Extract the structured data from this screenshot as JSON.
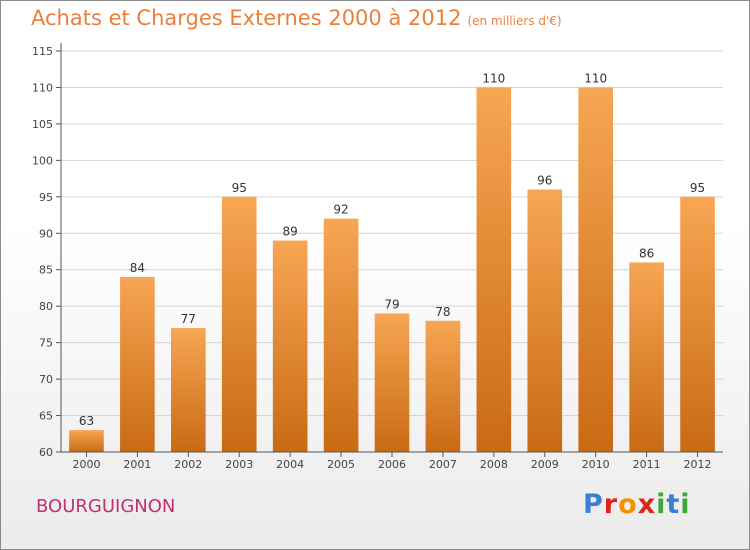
{
  "title": "Achats et Charges Externes 2000 à 2012",
  "subtitle": "(en milliers d'€)",
  "place": "BOURGUIGNON",
  "logo": {
    "text": "Proxiti",
    "letters": [
      {
        "char": "P",
        "color": "#3a7fd1"
      },
      {
        "char": "r",
        "color": "#e2231a"
      },
      {
        "char": "o",
        "color": "#f39200"
      },
      {
        "char": "x",
        "color": "#e2231a"
      },
      {
        "char": "i",
        "color": "#3aa935"
      },
      {
        "char": "t",
        "color": "#3a7fd1"
      },
      {
        "char": "i",
        "color": "#3aa935"
      }
    ]
  },
  "colors": {
    "bar_top": "#f7a653",
    "bar_bottom": "#c96a14",
    "title": "#ea7f3d",
    "place": "#c0316e",
    "axis": "#555555",
    "grid": "#d4d4d4"
  },
  "chart_data": {
    "type": "bar",
    "categories": [
      "2000",
      "2001",
      "2002",
      "2003",
      "2004",
      "2005",
      "2006",
      "2007",
      "2008",
      "2009",
      "2010",
      "2011",
      "2012"
    ],
    "values": [
      63,
      84,
      77,
      95,
      89,
      92,
      79,
      78,
      110,
      96,
      110,
      86,
      95
    ],
    "data_labels": [
      "63",
      "84",
      "77",
      "95",
      "89",
      "92",
      "79",
      "78",
      "110",
      "96",
      "110",
      "86",
      "95"
    ],
    "title": "Achats et Charges Externes 2000 à 2012",
    "subtitle": "(en milliers d'€)",
    "xlabel": "",
    "ylabel": "",
    "ylim": [
      60,
      115
    ],
    "yticks": [
      60,
      65,
      70,
      75,
      80,
      85,
      90,
      95,
      100,
      105,
      110,
      115
    ],
    "grid": true,
    "legend": "none"
  }
}
